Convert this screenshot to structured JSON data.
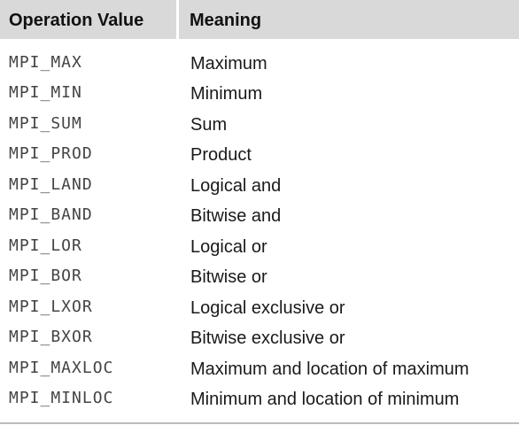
{
  "table": {
    "header": [
      "Operation Value",
      "Meaning"
    ],
    "rows": [
      [
        "MPI_MAX",
        "Maximum"
      ],
      [
        "MPI_MIN",
        "Minimum"
      ],
      [
        "MPI_SUM",
        "Sum"
      ],
      [
        "MPI_PROD",
        "Product"
      ],
      [
        "MPI_LAND",
        "Logical and"
      ],
      [
        "MPI_BAND",
        "Bitwise and"
      ],
      [
        "MPI_LOR",
        "Logical or"
      ],
      [
        "MPI_BOR",
        "Bitwise or"
      ],
      [
        "MPI_LXOR",
        "Logical exclusive or"
      ],
      [
        "MPI_BXOR",
        "Bitwise exclusive or"
      ],
      [
        "MPI_MAXLOC",
        "Maximum and location of maximum"
      ],
      [
        "MPI_MINLOC",
        "Minimum and location of minimum"
      ]
    ]
  }
}
